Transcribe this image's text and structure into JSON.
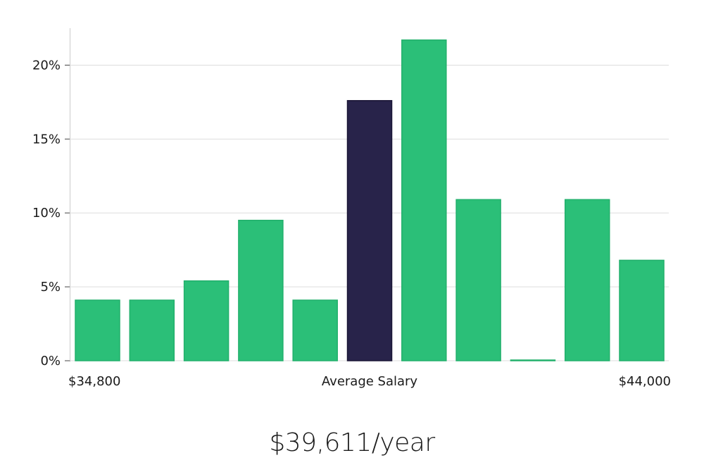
{
  "chart_data": {
    "type": "bar",
    "title": "",
    "xlabel": "",
    "ylabel": "",
    "ylim": [
      0,
      22.5
    ],
    "y_ticks": [
      0,
      5,
      10,
      15,
      20
    ],
    "y_tick_suffix": "%",
    "grid": true,
    "values": [
      4.1,
      4.1,
      5.4,
      9.5,
      4.1,
      17.6,
      21.7,
      10.9,
      0,
      10.9,
      6.8
    ],
    "highlight_index": 5,
    "colors": {
      "bar": "#2bbf78",
      "highlight": "#28234a",
      "grid": "#dddddd",
      "axis": "#cccccc"
    },
    "x_labels": {
      "left": "$34,800",
      "center": "Average Salary",
      "right": "$44,000"
    }
  },
  "salary_display": "$39,611/year"
}
